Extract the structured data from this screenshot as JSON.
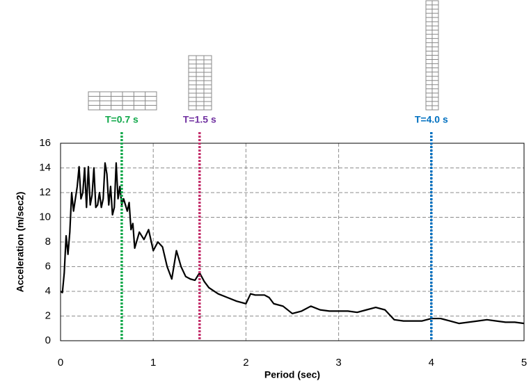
{
  "chart_data": {
    "type": "line",
    "x_label": "Period (sec)",
    "y_label": "Acceleration (m/sec2)",
    "x": [
      0,
      0.02,
      0.04,
      0.06,
      0.08,
      0.1,
      0.12,
      0.14,
      0.16,
      0.18,
      0.2,
      0.22,
      0.24,
      0.26,
      0.28,
      0.3,
      0.32,
      0.34,
      0.36,
      0.38,
      0.4,
      0.42,
      0.44,
      0.46,
      0.48,
      0.5,
      0.52,
      0.54,
      0.56,
      0.58,
      0.6,
      0.62,
      0.64,
      0.66,
      0.68,
      0.7,
      0.72,
      0.74,
      0.76,
      0.78,
      0.8,
      0.85,
      0.9,
      0.95,
      1.0,
      1.05,
      1.1,
      1.15,
      1.2,
      1.25,
      1.3,
      1.35,
      1.4,
      1.45,
      1.5,
      1.55,
      1.6,
      1.7,
      1.8,
      1.9,
      2.0,
      2.05,
      2.1,
      2.2,
      2.25,
      2.3,
      2.4,
      2.5,
      2.6,
      2.7,
      2.8,
      2.9,
      3.0,
      3.1,
      3.2,
      3.3,
      3.4,
      3.5,
      3.6,
      3.7,
      3.8,
      3.9,
      4.0,
      4.1,
      4.2,
      4.3,
      4.4,
      4.5,
      4.6,
      4.7,
      4.8,
      4.9,
      5.0
    ],
    "values": [
      4.0,
      3.9,
      5.5,
      8.5,
      7.0,
      8.8,
      12.0,
      10.5,
      11.5,
      12.5,
      14.1,
      11.5,
      12.0,
      14.0,
      10.8,
      14.1,
      11.0,
      11.8,
      14.0,
      10.8,
      11.0,
      12.0,
      10.8,
      11.5,
      14.4,
      13.5,
      11.0,
      12.5,
      10.2,
      10.8,
      14.4,
      11.5,
      12.5,
      11.0,
      11.5,
      11.0,
      10.5,
      11.2,
      9.0,
      9.5,
      7.5,
      8.8,
      8.2,
      9.0,
      7.3,
      8.0,
      7.6,
      6.0,
      5.0,
      7.3,
      6.0,
      5.2,
      5.0,
      4.9,
      5.5,
      4.8,
      4.3,
      3.8,
      3.5,
      3.2,
      3.0,
      3.8,
      3.7,
      3.7,
      3.5,
      3.0,
      2.8,
      2.2,
      2.4,
      2.8,
      2.5,
      2.4,
      2.4,
      2.4,
      2.3,
      2.5,
      2.7,
      2.5,
      1.7,
      1.6,
      1.6,
      1.6,
      1.8,
      1.8,
      1.6,
      1.4,
      1.5,
      1.6,
      1.7,
      1.6,
      1.5,
      1.5,
      1.4
    ],
    "color": "#000000",
    "xlim": [
      0,
      5
    ],
    "xticks": [
      0,
      1,
      2,
      3,
      4,
      5
    ],
    "ylim": [
      0,
      16
    ],
    "yticks": [
      0,
      2,
      4,
      6,
      8,
      10,
      12,
      14,
      16
    ],
    "grid": true,
    "markers": [
      {
        "x": 0.66,
        "label": "T=0.7 s",
        "color": "#10a84a",
        "label_color": "#10a84a"
      },
      {
        "x": 1.5,
        "label": "T=1.5 s",
        "color": "#c4306c",
        "label_color": "#7030a0"
      },
      {
        "x": 4.0,
        "label": "T=4.0 s",
        "color": "#0070c0",
        "label_color": "#0070c0"
      }
    ]
  }
}
